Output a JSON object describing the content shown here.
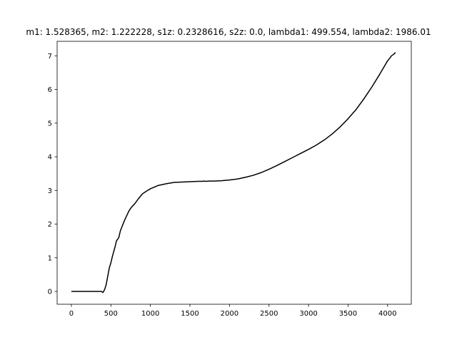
{
  "chart_data": {
    "type": "line",
    "title": "m1: 1.528365, m2: 1.222228, s1z: 0.2328616, s2z: 0.0, lambda1: 499.554, lambda2: 1986.01",
    "xlabel": "",
    "ylabel": "",
    "xlim": [
      -180,
      4300
    ],
    "ylim": [
      -0.38,
      7.43
    ],
    "xticks": [
      0,
      500,
      1000,
      1500,
      2000,
      2500,
      3000,
      3500,
      4000
    ],
    "xtick_labels": [
      "0",
      "500",
      "1000",
      "1500",
      "2000",
      "2500",
      "3000",
      "3500",
      "4000"
    ],
    "yticks": [
      0,
      1,
      2,
      3,
      4,
      5,
      6,
      7
    ],
    "ytick_labels": [
      "0",
      "1",
      "2",
      "3",
      "4",
      "5",
      "6",
      "7"
    ],
    "grid": false,
    "line_color": "#000000",
    "series": [
      {
        "x": [
          0,
          100,
          120,
          150,
          200,
          250,
          300,
          350,
          380,
          400,
          420,
          440,
          460,
          480,
          500,
          520,
          550,
          570,
          600,
          620,
          650,
          680,
          700,
          730,
          760,
          800,
          850,
          900,
          950,
          1000,
          1050,
          1100,
          1200,
          1300,
          1400,
          1500,
          1600,
          1650,
          1680,
          1700,
          1750,
          1800,
          1900,
          2000,
          2100,
          2200,
          2300,
          2400,
          2500,
          2600,
          2700,
          2800,
          2900,
          3000,
          3100,
          3200,
          3300,
          3400,
          3500,
          3600,
          3700,
          3800,
          3900,
          4000,
          4050,
          4080,
          4100
        ],
        "y": [
          0,
          0,
          0,
          0,
          0,
          0,
          0,
          0,
          0,
          -0.03,
          0.05,
          0.2,
          0.45,
          0.7,
          0.85,
          1.05,
          1.3,
          1.5,
          1.6,
          1.8,
          1.98,
          2.15,
          2.25,
          2.4,
          2.5,
          2.6,
          2.76,
          2.9,
          2.98,
          3.05,
          3.1,
          3.15,
          3.2,
          3.24,
          3.25,
          3.26,
          3.27,
          3.27,
          3.28,
          3.27,
          3.28,
          3.28,
          3.29,
          3.31,
          3.34,
          3.39,
          3.45,
          3.53,
          3.63,
          3.74,
          3.86,
          3.98,
          4.1,
          4.22,
          4.35,
          4.5,
          4.68,
          4.89,
          5.13,
          5.4,
          5.72,
          6.07,
          6.45,
          6.85,
          7.0,
          7.05,
          7.1
        ]
      }
    ]
  }
}
